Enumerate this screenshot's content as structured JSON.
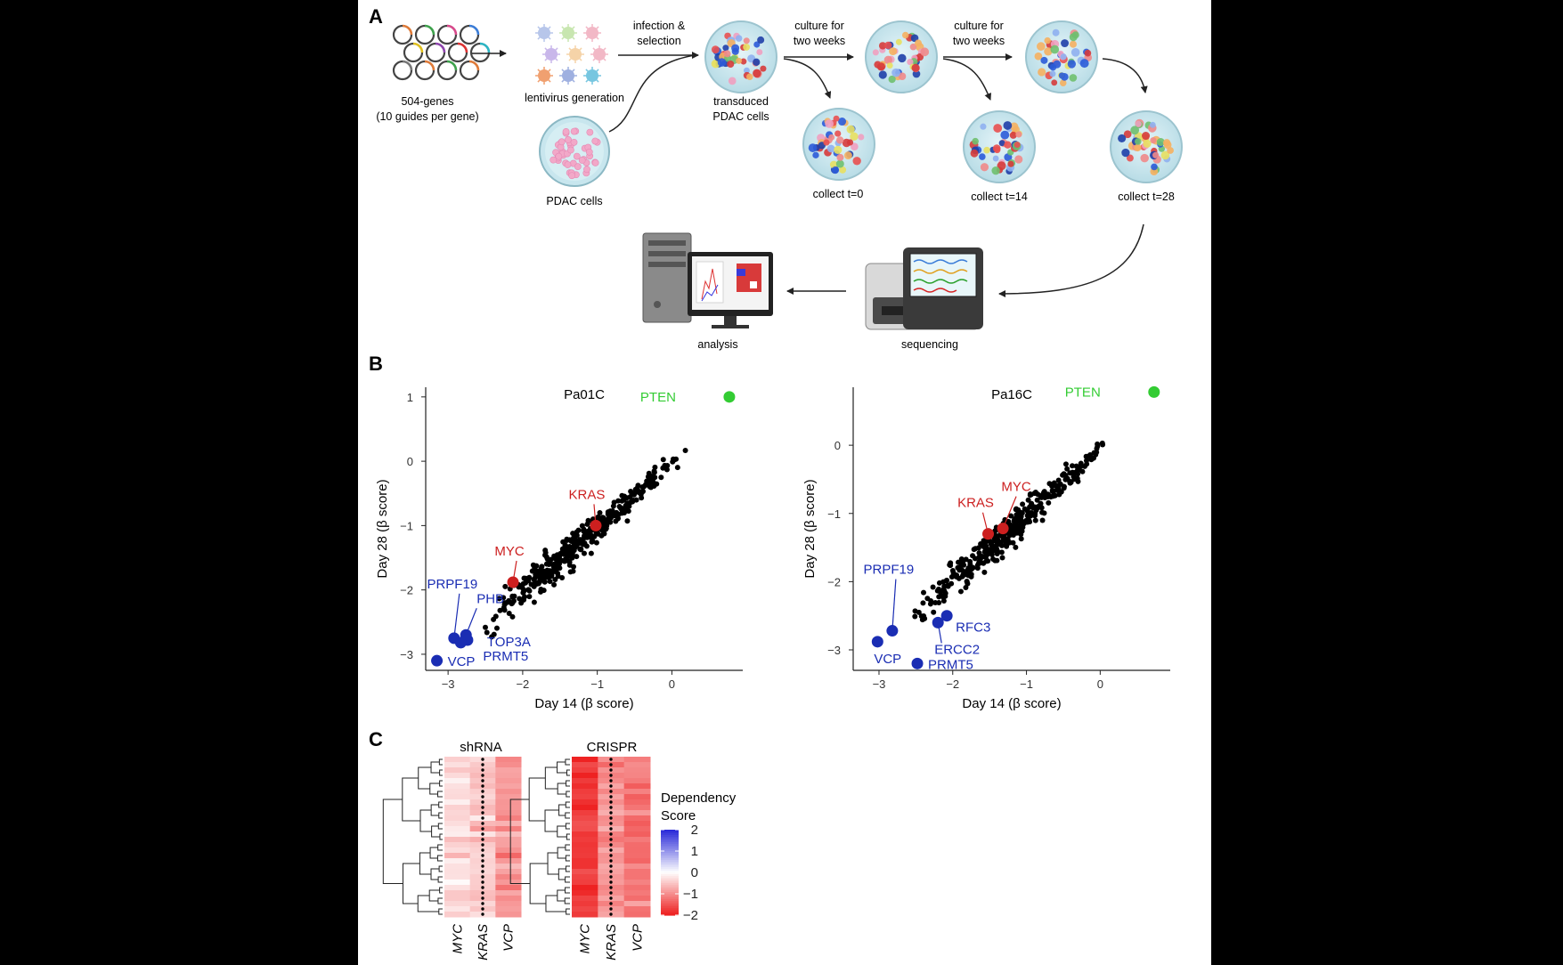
{
  "panel_a": {
    "letter": "A",
    "library_line1": "504-genes",
    "library_line2": "(10 guides per gene)",
    "lentivirus_label": "lentivirus generation",
    "infection_line1": "infection &",
    "infection_line2": "selection",
    "pdac_label": "PDAC cells",
    "transduced_line1": "transduced",
    "transduced_line2": "PDAC cells",
    "culture1_line1": "culture for",
    "culture1_line2": "two weeks",
    "culture2_line1": "culture for",
    "culture2_line2": "two weeks",
    "collect_t0": "collect t=0",
    "collect_t14": "collect t=14",
    "collect_t28": "collect t=28",
    "sequencing_label": "sequencing",
    "analysis_label": "analysis"
  },
  "panel_b": {
    "letter": "B"
  },
  "panel_c": {
    "letter": "C"
  },
  "chart_data": [
    {
      "type": "scatter",
      "title": "Pa01C",
      "xlabel": "Day 14 (β score)",
      "ylabel": "Day 28 (β score)",
      "xlim": [
        -3.3,
        0.95
      ],
      "ylim": [
        -3.25,
        1.15
      ],
      "xticks": [
        -3,
        -2,
        -1,
        0
      ],
      "yticks": [
        1,
        0,
        -1,
        -2,
        -3
      ],
      "grid": false,
      "background_trend": {
        "slope": 0.98,
        "intercept": -0.06,
        "x_range": [
          -2.6,
          0.3
        ],
        "n": 380
      },
      "highlights": [
        {
          "label": "PTEN",
          "x": 0.77,
          "y": 1.0,
          "color": "#33cc33"
        },
        {
          "label": "KRAS",
          "x": -1.02,
          "y": -1.0,
          "color": "#cc1f1f"
        },
        {
          "label": "MYC",
          "x": -2.13,
          "y": -1.88,
          "color": "#cc1f1f"
        },
        {
          "label": "PRPF19",
          "x": -2.92,
          "y": -2.75,
          "color": "#1a2db3"
        },
        {
          "label": "PHB",
          "x": -2.76,
          "y": -2.7,
          "color": "#1a2db3"
        },
        {
          "label": "TOP3A",
          "x": -2.74,
          "y": -2.78,
          "color": "#1a2db3"
        },
        {
          "label": "PRMT5",
          "x": -2.83,
          "y": -2.82,
          "color": "#1a2db3"
        },
        {
          "label": "VCP",
          "x": -3.15,
          "y": -3.1,
          "color": "#1a2db3"
        }
      ]
    },
    {
      "type": "scatter",
      "title": "Pa16C",
      "xlabel": "Day 14 (β score)",
      "ylabel": "Day 28 (β score)",
      "xlim": [
        -3.35,
        0.95
      ],
      "ylim": [
        -3.3,
        0.85
      ],
      "xticks": [
        -3,
        -2,
        -1,
        0
      ],
      "yticks": [
        0,
        -1,
        -2,
        -3
      ],
      "grid": false,
      "background_trend": {
        "slope": 0.98,
        "intercept": -0.06,
        "x_range": [
          -2.6,
          0.3
        ],
        "n": 380
      },
      "highlights": [
        {
          "label": "PTEN",
          "x": 0.73,
          "y": 0.78,
          "color": "#33cc33"
        },
        {
          "label": "KRAS",
          "x": -1.52,
          "y": -1.3,
          "color": "#cc1f1f"
        },
        {
          "label": "MYC",
          "x": -1.32,
          "y": -1.22,
          "color": "#cc1f1f"
        },
        {
          "label": "PRPF19",
          "x": -2.82,
          "y": -2.72,
          "color": "#1a2db3"
        },
        {
          "label": "RFC3",
          "x": -2.08,
          "y": -2.5,
          "color": "#1a2db3"
        },
        {
          "label": "ERCC2",
          "x": -2.2,
          "y": -2.6,
          "color": "#1a2db3"
        },
        {
          "label": "VCP",
          "x": -3.02,
          "y": -2.88,
          "color": "#1a2db3"
        },
        {
          "label": "PRMT5",
          "x": -2.48,
          "y": -3.2,
          "color": "#1a2db3"
        }
      ]
    },
    {
      "type": "heatmap",
      "title": "shRNA",
      "columns": [
        "MYC",
        "KRAS",
        "VCP"
      ],
      "column_means": [
        -0.35,
        -0.5,
        -0.85
      ],
      "n_rows": 30,
      "dot_column": "KRAS"
    },
    {
      "type": "heatmap",
      "title": "CRISPR",
      "columns": [
        "MYC",
        "KRAS",
        "VCP"
      ],
      "column_means": [
        -1.8,
        -1.0,
        -1.2
      ],
      "n_rows": 30,
      "dot_column": "KRAS"
    }
  ],
  "legend": {
    "title_line1": "Dependency",
    "title_line2": "Score",
    "ticks": [
      2,
      1,
      0,
      -1,
      -2
    ],
    "tick_labels": [
      "2",
      "1",
      "0",
      "−1",
      "−2"
    ],
    "colors": [
      "#2b2bd9",
      "#ffffff",
      "#ee2222"
    ]
  },
  "colors": {
    "red": "#cc1f1f",
    "blue": "#1a2db3",
    "green": "#33cc33"
  }
}
